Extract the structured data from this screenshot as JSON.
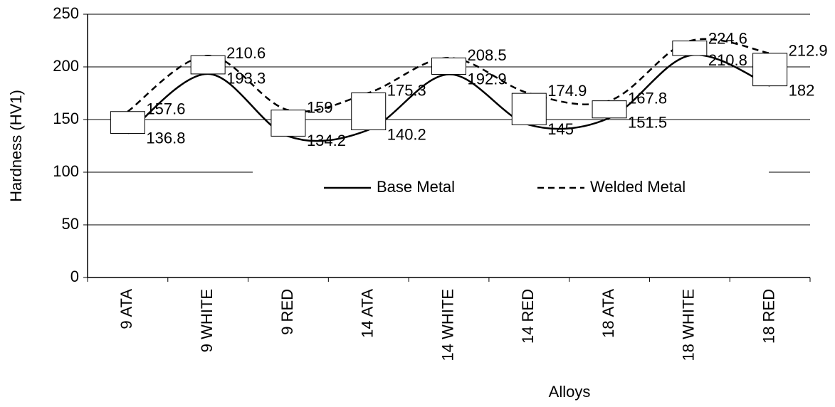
{
  "chart_data": {
    "type": "line",
    "x_label": "Alloys",
    "y_label": "Hardness (HV1)",
    "categories": [
      "9 ATA",
      "9 WHITE",
      "9 RED",
      "14 ATA",
      "14 WHITE",
      "14 RED",
      "18 ATA",
      "18 WHITE",
      "18 RED"
    ],
    "series": [
      {
        "name": "Base Metal",
        "color": "#000000",
        "dash": false,
        "values": [
          136.8,
          193.3,
          134.2,
          140.2,
          192.9,
          145,
          151.5,
          210.8,
          182
        ]
      },
      {
        "name": "Welded Metal",
        "color": "#000000",
        "dash": true,
        "values": [
          157.6,
          210.6,
          159,
          175.3,
          208.5,
          174.9,
          167.8,
          224.6,
          212.9
        ]
      }
    ],
    "smooth": true,
    "up_down_bars": true,
    "ylim": [
      0,
      250
    ],
    "yticks": [
      0,
      50,
      100,
      150,
      200,
      250
    ],
    "grid": true,
    "legend": "center"
  }
}
